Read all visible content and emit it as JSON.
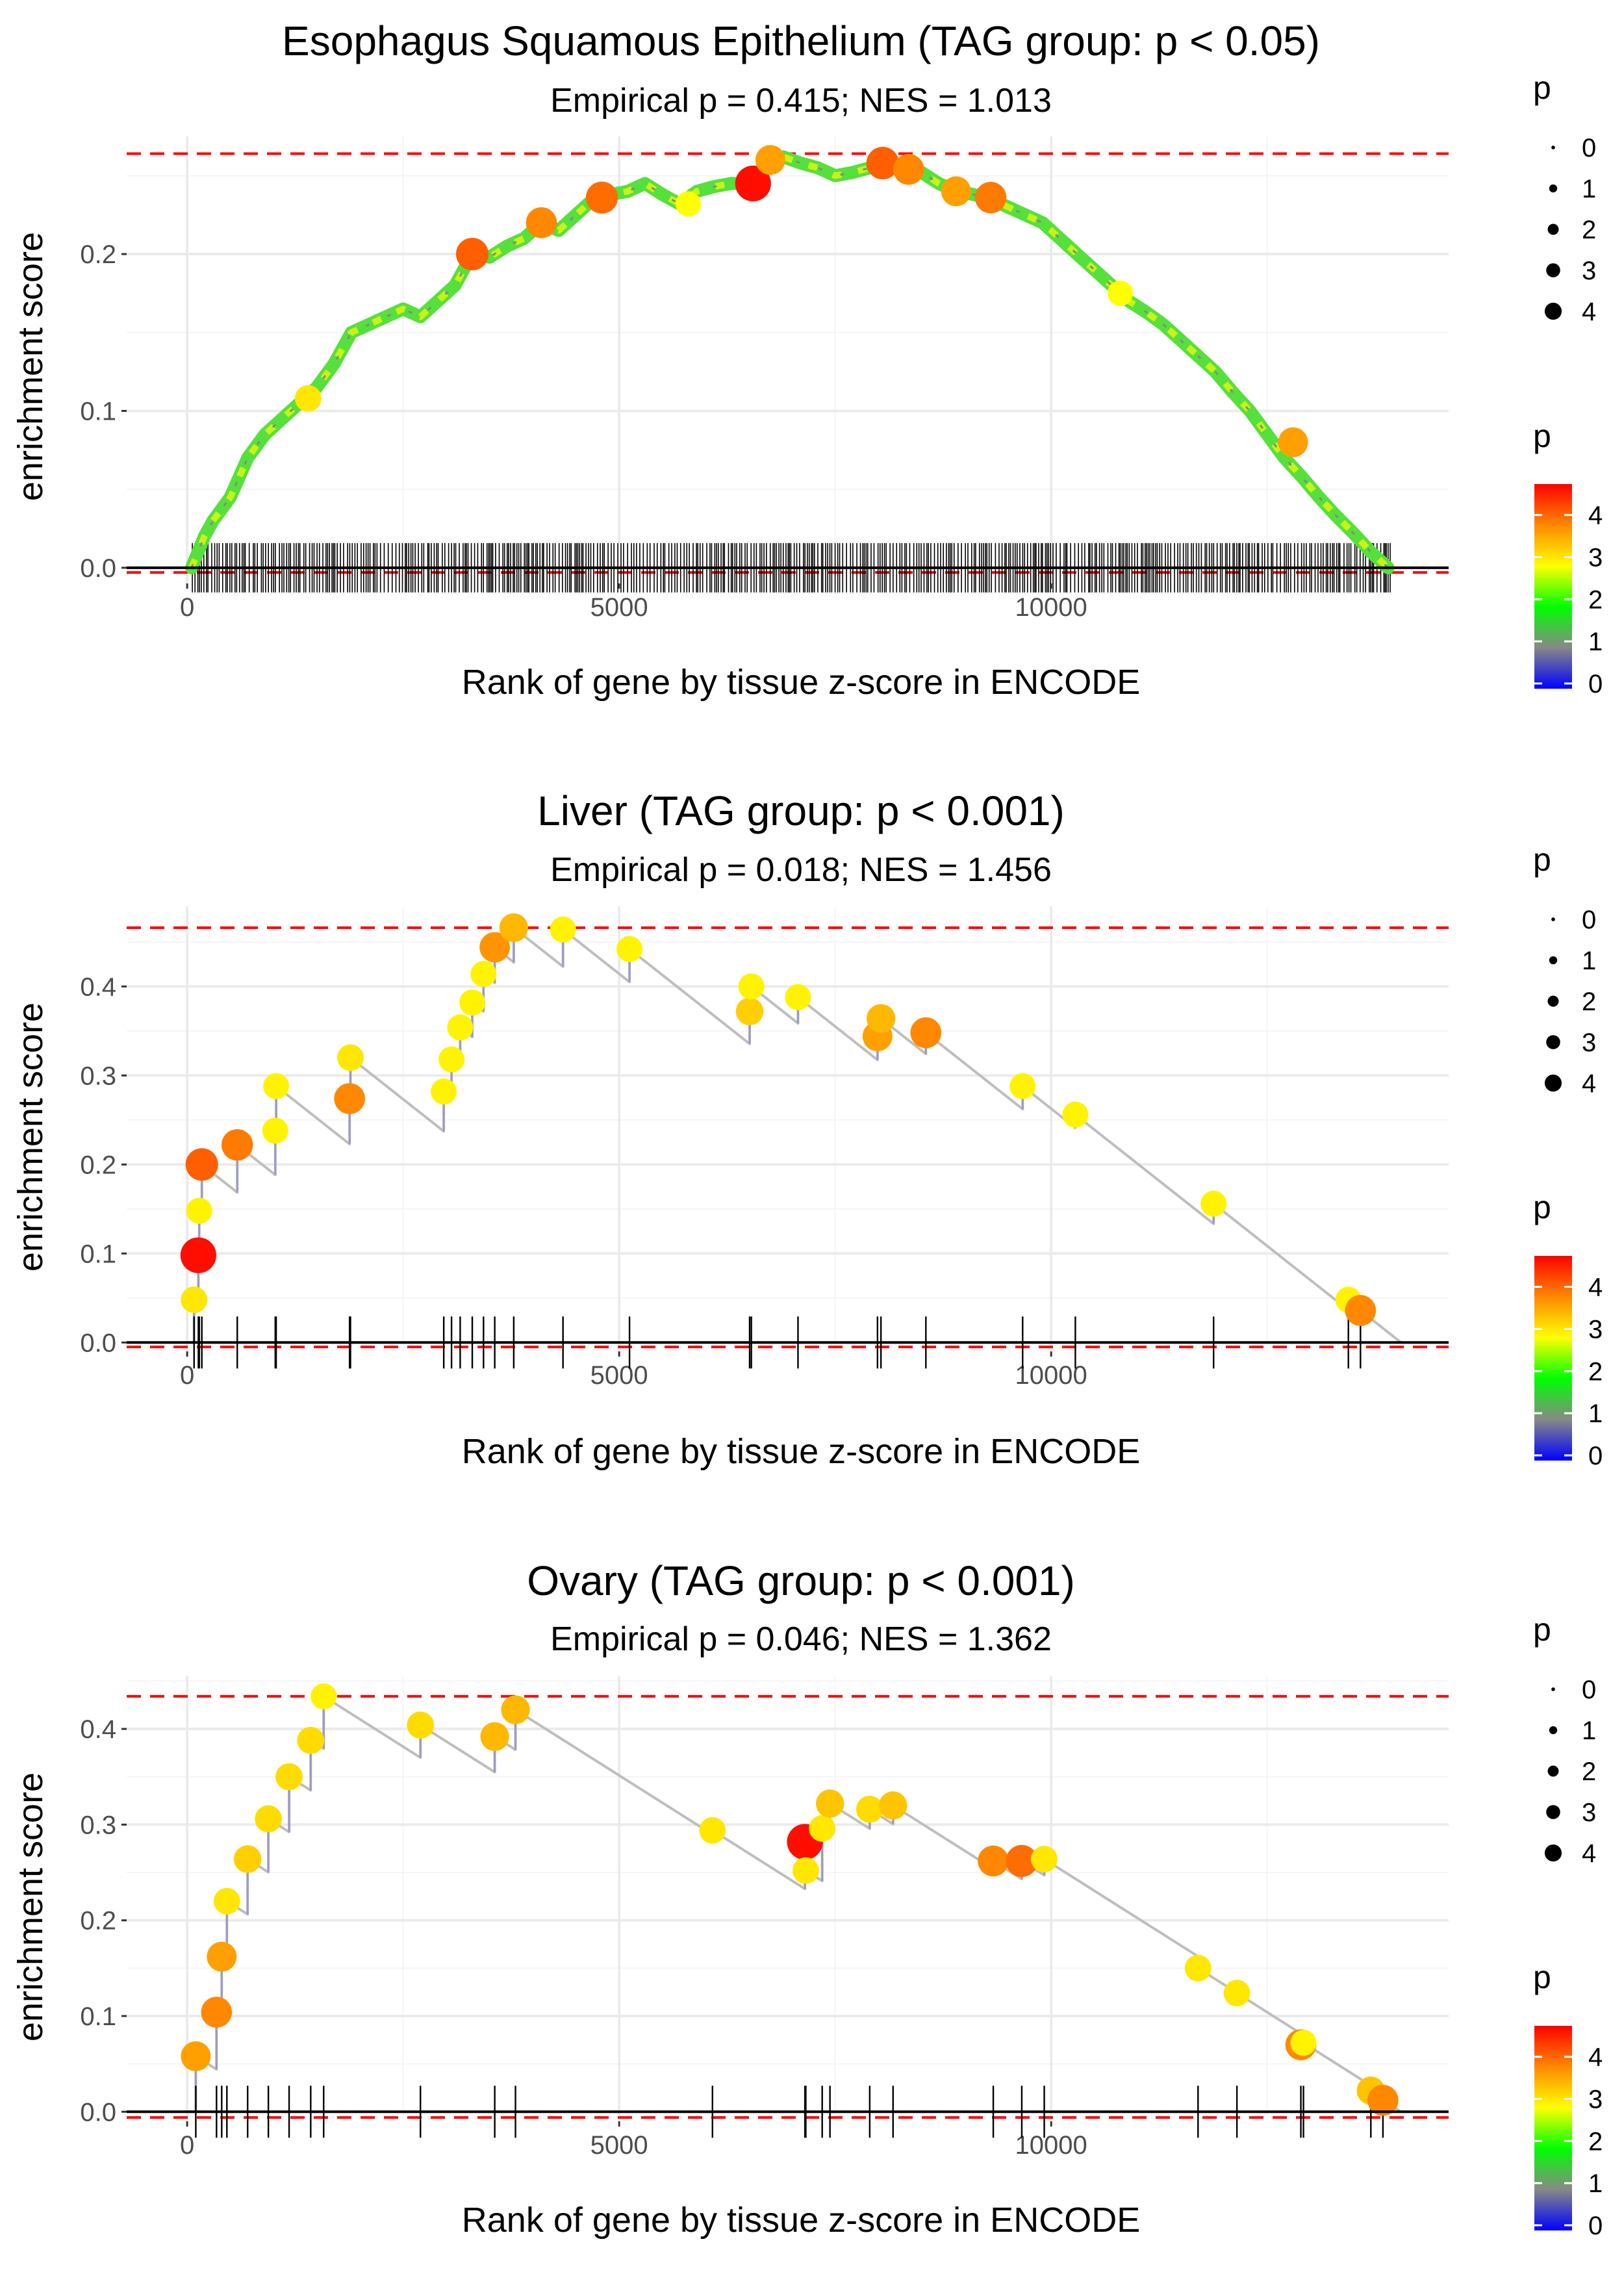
{
  "chart_data": [
    {
      "type": "line",
      "title": "Esophagus Squamous Epithelium (TAG group: p < 0.05)",
      "subtitle": "Empirical p = 0.415; NES = 1.013",
      "xlabel": "Rank of gene by tissue z-score in ENCODE",
      "ylabel": "enrichment score",
      "xlim": [
        -700,
        14600
      ],
      "ylim": [
        -0.01,
        0.275
      ],
      "xticks": [
        0,
        5000,
        10000
      ],
      "xtick_labels": [
        "0",
        "5000",
        "10000"
      ],
      "yticks": [
        0,
        0.1,
        0.2
      ],
      "ytick_labels": [
        "0.0",
        "0.1",
        "0.2"
      ],
      "max_es": 0.264,
      "min_es": -0.003,
      "dense": true,
      "curve": [
        [
          50,
          0.0
        ],
        [
          200,
          0.02
        ],
        [
          300,
          0.03
        ],
        [
          500,
          0.045
        ],
        [
          700,
          0.07
        ],
        [
          900,
          0.085
        ],
        [
          1100,
          0.095
        ],
        [
          1300,
          0.105
        ],
        [
          1500,
          0.115
        ],
        [
          1700,
          0.13
        ],
        [
          1900,
          0.15
        ],
        [
          2100,
          0.155
        ],
        [
          2300,
          0.16
        ],
        [
          2500,
          0.165
        ],
        [
          2700,
          0.16
        ],
        [
          2900,
          0.17
        ],
        [
          3100,
          0.18
        ],
        [
          3300,
          0.2
        ],
        [
          3500,
          0.198
        ],
        [
          3700,
          0.205
        ],
        [
          3900,
          0.21
        ],
        [
          4100,
          0.22
        ],
        [
          4300,
          0.215
        ],
        [
          4500,
          0.225
        ],
        [
          4700,
          0.235
        ],
        [
          4900,
          0.238
        ],
        [
          5100,
          0.24
        ],
        [
          5300,
          0.245
        ],
        [
          5500,
          0.238
        ],
        [
          5700,
          0.232
        ],
        [
          5900,
          0.24
        ],
        [
          6100,
          0.243
        ],
        [
          6300,
          0.245
        ],
        [
          6500,
          0.245
        ],
        [
          6700,
          0.255
        ],
        [
          6900,
          0.262
        ],
        [
          7100,
          0.258
        ],
        [
          7300,
          0.255
        ],
        [
          7500,
          0.25
        ],
        [
          7700,
          0.252
        ],
        [
          7900,
          0.255
        ],
        [
          8100,
          0.258
        ],
        [
          8300,
          0.256
        ],
        [
          8500,
          0.252
        ],
        [
          8700,
          0.245
        ],
        [
          8900,
          0.24
        ],
        [
          9100,
          0.238
        ],
        [
          9300,
          0.235
        ],
        [
          9500,
          0.23
        ],
        [
          9700,
          0.225
        ],
        [
          9900,
          0.22
        ],
        [
          10100,
          0.21
        ],
        [
          10300,
          0.2
        ],
        [
          10500,
          0.19
        ],
        [
          10700,
          0.18
        ],
        [
          10900,
          0.17
        ],
        [
          11100,
          0.163
        ],
        [
          11300,
          0.155
        ],
        [
          11500,
          0.145
        ],
        [
          11700,
          0.135
        ],
        [
          11900,
          0.125
        ],
        [
          12100,
          0.112
        ],
        [
          12300,
          0.1
        ],
        [
          12500,
          0.085
        ],
        [
          12700,
          0.07
        ],
        [
          12900,
          0.058
        ],
        [
          13100,
          0.045
        ],
        [
          13300,
          0.033
        ],
        [
          13500,
          0.022
        ],
        [
          13700,
          0.01
        ],
        [
          13900,
          0.0
        ]
      ],
      "highlights": [
        {
          "x": 3300,
          "y": 0.2,
          "p": 4.3
        },
        {
          "x": 4100,
          "y": 0.22,
          "p": 4.0
        },
        {
          "x": 4800,
          "y": 0.236,
          "p": 4.2
        },
        {
          "x": 6550,
          "y": 0.245,
          "p": 4.9
        },
        {
          "x": 6750,
          "y": 0.26,
          "p": 3.8
        },
        {
          "x": 8050,
          "y": 0.258,
          "p": 4.3
        },
        {
          "x": 8350,
          "y": 0.254,
          "p": 4.0
        },
        {
          "x": 8900,
          "y": 0.24,
          "p": 3.8
        },
        {
          "x": 9300,
          "y": 0.236,
          "p": 4.1
        },
        {
          "x": 12800,
          "y": 0.08,
          "p": 3.8
        },
        {
          "x": 1400,
          "y": 0.108,
          "p": 3.2
        },
        {
          "x": 5800,
          "y": 0.232,
          "p": 3.0
        },
        {
          "x": 10800,
          "y": 0.175,
          "p": 3.0
        }
      ]
    },
    {
      "type": "line",
      "title": "Liver (TAG group: p < 0.001)",
      "subtitle": "Empirical p = 0.018; NES = 1.456",
      "xlabel": "Rank of gene by tissue z-score in ENCODE",
      "ylabel": "enrichment score",
      "xlim": [
        -700,
        14600
      ],
      "ylim": [
        -0.01,
        0.49
      ],
      "xticks": [
        0,
        5000,
        10000
      ],
      "xtick_labels": [
        "0",
        "5000",
        "10000"
      ],
      "yticks": [
        0,
        0.1,
        0.2,
        0.3,
        0.4
      ],
      "ytick_labels": [
        "0.0",
        "0.1",
        "0.2",
        "0.3",
        "0.4"
      ],
      "max_es": 0.466,
      "min_es": -0.005,
      "hits": [
        {
          "x": 80,
          "y": 0.048,
          "p": 3.2
        },
        {
          "x": 130,
          "y": 0.098,
          "p": 4.9
        },
        {
          "x": 140,
          "y": 0.148,
          "p": 3.1
        },
        {
          "x": 170,
          "y": 0.2,
          "p": 4.3
        },
        {
          "x": 580,
          "y": 0.222,
          "p": 4.1
        },
        {
          "x": 1020,
          "y": 0.238,
          "p": 3.1
        },
        {
          "x": 1030,
          "y": 0.288,
          "p": 3.1
        },
        {
          "x": 1880,
          "y": 0.274,
          "p": 4.0
        },
        {
          "x": 1890,
          "y": 0.32,
          "p": 3.2
        },
        {
          "x": 2970,
          "y": 0.282,
          "p": 3.1
        },
        {
          "x": 3060,
          "y": 0.318,
          "p": 3.1
        },
        {
          "x": 3160,
          "y": 0.354,
          "p": 3.1
        },
        {
          "x": 3300,
          "y": 0.382,
          "p": 3.1
        },
        {
          "x": 3430,
          "y": 0.414,
          "p": 3.1
        },
        {
          "x": 3560,
          "y": 0.444,
          "p": 3.9
        },
        {
          "x": 3780,
          "y": 0.466,
          "p": 3.6
        },
        {
          "x": 4350,
          "y": 0.464,
          "p": 3.1
        },
        {
          "x": 5120,
          "y": 0.442,
          "p": 3.1
        },
        {
          "x": 6510,
          "y": 0.372,
          "p": 3.4
        },
        {
          "x": 6530,
          "y": 0.4,
          "p": 3.1
        },
        {
          "x": 7070,
          "y": 0.388,
          "p": 3.1
        },
        {
          "x": 7990,
          "y": 0.344,
          "p": 3.8
        },
        {
          "x": 8030,
          "y": 0.364,
          "p": 3.6
        },
        {
          "x": 8550,
          "y": 0.348,
          "p": 4.0
        },
        {
          "x": 9670,
          "y": 0.288,
          "p": 3.1
        },
        {
          "x": 10280,
          "y": 0.256,
          "p": 3.1
        },
        {
          "x": 11880,
          "y": 0.156,
          "p": 3.1
        },
        {
          "x": 13440,
          "y": 0.048,
          "p": 3.1
        },
        {
          "x": 13580,
          "y": 0.036,
          "p": 4.0
        }
      ],
      "end_x": 14050
    },
    {
      "type": "line",
      "title": "Ovary (TAG group: p < 0.001)",
      "subtitle": "Empirical p = 0.046; NES = 1.362",
      "xlabel": "Rank of gene by tissue z-score in ENCODE",
      "ylabel": "enrichment score",
      "xlim": [
        -700,
        14600
      ],
      "ylim": [
        -0.01,
        0.455
      ],
      "xticks": [
        0,
        5000,
        10000
      ],
      "xtick_labels": [
        "0",
        "5000",
        "10000"
      ],
      "yticks": [
        0,
        0.1,
        0.2,
        0.3,
        0.4
      ],
      "ytick_labels": [
        "0.0",
        "0.1",
        "0.2",
        "0.3",
        "0.4"
      ],
      "max_es": 0.434,
      "min_es": -0.006,
      "hits": [
        {
          "x": 100,
          "y": 0.058,
          "p": 3.8
        },
        {
          "x": 340,
          "y": 0.104,
          "p": 4.0
        },
        {
          "x": 400,
          "y": 0.162,
          "p": 3.8
        },
        {
          "x": 460,
          "y": 0.22,
          "p": 3.2
        },
        {
          "x": 700,
          "y": 0.264,
          "p": 3.4
        },
        {
          "x": 940,
          "y": 0.306,
          "p": 3.3
        },
        {
          "x": 1180,
          "y": 0.35,
          "p": 3.3
        },
        {
          "x": 1430,
          "y": 0.388,
          "p": 3.3
        },
        {
          "x": 1580,
          "y": 0.434,
          "p": 3.1
        },
        {
          "x": 2700,
          "y": 0.404,
          "p": 3.3
        },
        {
          "x": 3560,
          "y": 0.392,
          "p": 3.6
        },
        {
          "x": 3800,
          "y": 0.42,
          "p": 3.6
        },
        {
          "x": 6080,
          "y": 0.294,
          "p": 3.2
        },
        {
          "x": 7150,
          "y": 0.282,
          "p": 4.9
        },
        {
          "x": 7160,
          "y": 0.252,
          "p": 3.2
        },
        {
          "x": 7350,
          "y": 0.296,
          "p": 3.2
        },
        {
          "x": 7440,
          "y": 0.322,
          "p": 3.5
        },
        {
          "x": 7900,
          "y": 0.316,
          "p": 3.3
        },
        {
          "x": 8170,
          "y": 0.32,
          "p": 3.5
        },
        {
          "x": 9330,
          "y": 0.262,
          "p": 4.0
        },
        {
          "x": 9660,
          "y": 0.262,
          "p": 4.2
        },
        {
          "x": 9920,
          "y": 0.264,
          "p": 3.2
        },
        {
          "x": 11700,
          "y": 0.15,
          "p": 3.2
        },
        {
          "x": 12150,
          "y": 0.124,
          "p": 3.2
        },
        {
          "x": 12890,
          "y": 0.07,
          "p": 4.0
        },
        {
          "x": 12920,
          "y": 0.072,
          "p": 3.1
        },
        {
          "x": 13700,
          "y": 0.022,
          "p": 3.5
        },
        {
          "x": 13840,
          "y": 0.012,
          "p": 4.0
        }
      ],
      "end_x": 14050
    }
  ],
  "legends": {
    "size_title": "p",
    "size_levels": [
      "0",
      "1",
      "2",
      "3",
      "4"
    ],
    "color_title": "p",
    "color_ticks": [
      "0",
      "1",
      "2",
      "3",
      "4"
    ],
    "color_scale": [
      "#0000ff",
      "#888888",
      "#00ff00",
      "#ffff00",
      "#ff8800",
      "#ff0000"
    ]
  },
  "colors": {
    "threshold_line": "#ff0000",
    "running_line": "#bebebe",
    "grid": "#ebebeb",
    "axis_zero": "#000000",
    "rug": "#000000"
  }
}
